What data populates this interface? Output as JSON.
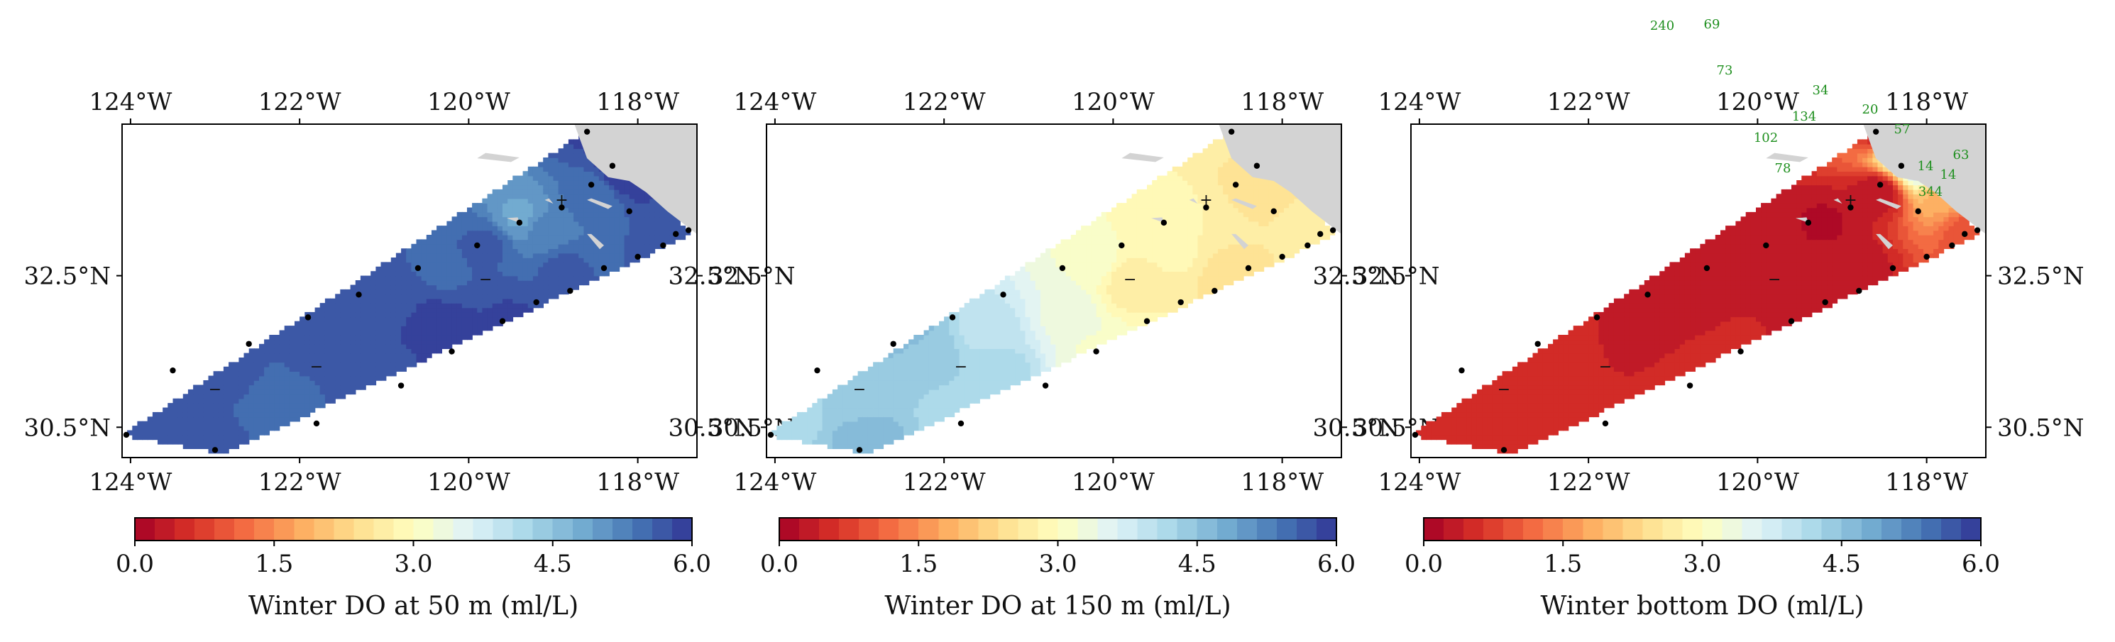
{
  "chart_data": {
    "type": "heatmap",
    "lon_ticks": [
      "124°W",
      "122°W",
      "120°W",
      "118°W"
    ],
    "lat_ticks": [
      "32.5°N",
      "30.5°N"
    ],
    "colorbar": {
      "ticks": [
        "0.0",
        "1.5",
        "3.0",
        "4.5",
        "6.0"
      ],
      "range": [
        0,
        6
      ]
    },
    "stations": [
      [
        -118.6,
        34.4
      ],
      [
        -118.3,
        33.95
      ],
      [
        -118.9,
        33.4
      ],
      [
        -119.4,
        33.2
      ],
      [
        -119.9,
        32.9
      ],
      [
        -120.6,
        32.6
      ],
      [
        -121.3,
        32.25
      ],
      [
        -121.9,
        31.95
      ],
      [
        -122.6,
        31.6
      ],
      [
        -123.5,
        31.25
      ],
      [
        -124.05,
        30.4
      ],
      [
        -123.0,
        30.2
      ],
      [
        -121.8,
        30.55
      ],
      [
        -120.8,
        31.05
      ],
      [
        -120.2,
        31.5
      ],
      [
        -119.6,
        31.9
      ],
      [
        -119.2,
        32.15
      ],
      [
        -118.8,
        32.3
      ],
      [
        -118.4,
        32.6
      ],
      [
        -118.0,
        32.75
      ],
      [
        -117.7,
        32.9
      ],
      [
        -117.55,
        33.05
      ],
      [
        -117.4,
        33.1
      ],
      [
        -118.55,
        33.7
      ],
      [
        -118.1,
        33.35
      ]
    ],
    "panels": [
      {
        "label": "Winter DO at 50 m (ml/L)",
        "points": [
          {
            "lon": -118.55,
            "lat": 34.45,
            "value": 5.8
          },
          {
            "lon": -118.1,
            "lat": 33.95,
            "value": 6.0
          },
          {
            "lon": -117.5,
            "lat": 33.1,
            "value": 5.7
          },
          {
            "lon": -118.6,
            "lat": 33.5,
            "value": 5.4
          },
          {
            "lon": -119.1,
            "lat": 33.1,
            "value": 5.2
          },
          {
            "lon": -119.4,
            "lat": 33.3,
            "value": 4.9
          },
          {
            "lon": -118.9,
            "lat": 32.6,
            "value": 5.6
          },
          {
            "lon": -119.8,
            "lat": 32.9,
            "value": 5.6
          },
          {
            "lon": -120.4,
            "lat": 31.8,
            "value": 5.95
          },
          {
            "lon": -119.5,
            "lat": 31.9,
            "value": 5.8
          },
          {
            "lon": -121.0,
            "lat": 32.2,
            "value": 5.6
          },
          {
            "lon": -121.8,
            "lat": 31.6,
            "value": 5.6
          },
          {
            "lon": -122.8,
            "lat": 31.2,
            "value": 5.6
          },
          {
            "lon": -123.5,
            "lat": 30.6,
            "value": 5.7
          },
          {
            "lon": -122.3,
            "lat": 30.8,
            "value": 5.5
          },
          {
            "lon": -121.0,
            "lat": 31.3,
            "value": 5.7
          },
          {
            "lon": -120.3,
            "lat": 32.6,
            "value": 5.55
          },
          {
            "lon": -123.0,
            "lat": 30.25,
            "value": 5.6
          }
        ]
      },
      {
        "label": "Winter DO at 150 m (ml/L)",
        "points": [
          {
            "lon": -118.55,
            "lat": 34.45,
            "value": 2.6
          },
          {
            "lon": -117.6,
            "lat": 33.2,
            "value": 2.6
          },
          {
            "lon": -118.2,
            "lat": 33.8,
            "value": 2.5
          },
          {
            "lon": -118.7,
            "lat": 32.5,
            "value": 2.5
          },
          {
            "lon": -119.5,
            "lat": 33.2,
            "value": 2.9
          },
          {
            "lon": -119.8,
            "lat": 32.4,
            "value": 2.7
          },
          {
            "lon": -119.2,
            "lat": 32.8,
            "value": 2.8
          },
          {
            "lon": -120.3,
            "lat": 32.7,
            "value": 3.2
          },
          {
            "lon": -120.6,
            "lat": 32.0,
            "value": 3.4
          },
          {
            "lon": -120.2,
            "lat": 31.5,
            "value": 3.2
          },
          {
            "lon": -121.4,
            "lat": 31.8,
            "value": 3.9
          },
          {
            "lon": -121.4,
            "lat": 31.3,
            "value": 4.2
          },
          {
            "lon": -122.2,
            "lat": 31.4,
            "value": 4.4
          },
          {
            "lon": -123.0,
            "lat": 30.9,
            "value": 4.4
          },
          {
            "lon": -123.8,
            "lat": 30.7,
            "value": 4.2
          },
          {
            "lon": -122.9,
            "lat": 30.35,
            "value": 4.6
          },
          {
            "lon": -122.5,
            "lat": 31.8,
            "value": 4.6
          },
          {
            "lon": -121.9,
            "lat": 30.7,
            "value": 4.2
          }
        ]
      },
      {
        "label": "Winter bottom DO (ml/L)",
        "points": [
          {
            "lon": -118.55,
            "lat": 34.4,
            "value": 0.4
          },
          {
            "lon": -118.35,
            "lat": 34.15,
            "value": 3.0
          },
          {
            "lon": -118.05,
            "lat": 34.0,
            "value": 4.2
          },
          {
            "lon": -117.75,
            "lat": 33.6,
            "value": 1.8
          },
          {
            "lon": -117.45,
            "lat": 33.1,
            "value": 0.9
          },
          {
            "lon": -118.6,
            "lat": 33.6,
            "value": 0.3
          },
          {
            "lon": -119.2,
            "lat": 33.2,
            "value": 0.2
          },
          {
            "lon": -118.9,
            "lat": 32.6,
            "value": 0.3
          },
          {
            "lon": -120.0,
            "lat": 32.7,
            "value": 0.35
          },
          {
            "lon": -120.6,
            "lat": 32.2,
            "value": 0.4
          },
          {
            "lon": -121.4,
            "lat": 31.6,
            "value": 0.4
          },
          {
            "lon": -122.3,
            "lat": 31.2,
            "value": 0.5
          },
          {
            "lon": -123.3,
            "lat": 30.7,
            "value": 0.6
          },
          {
            "lon": -122.6,
            "lat": 30.4,
            "value": 0.55
          },
          {
            "lon": -121.0,
            "lat": 31.0,
            "value": 0.5
          },
          {
            "lon": -120.2,
            "lat": 31.6,
            "value": 0.45
          },
          {
            "lon": -119.6,
            "lat": 32.0,
            "value": 0.4
          }
        ],
        "depth_labels": [
          "240",
          "69",
          "73",
          "34",
          "134",
          "20",
          "102",
          "57",
          "63",
          "78",
          "14",
          "14",
          "344"
        ]
      }
    ]
  }
}
